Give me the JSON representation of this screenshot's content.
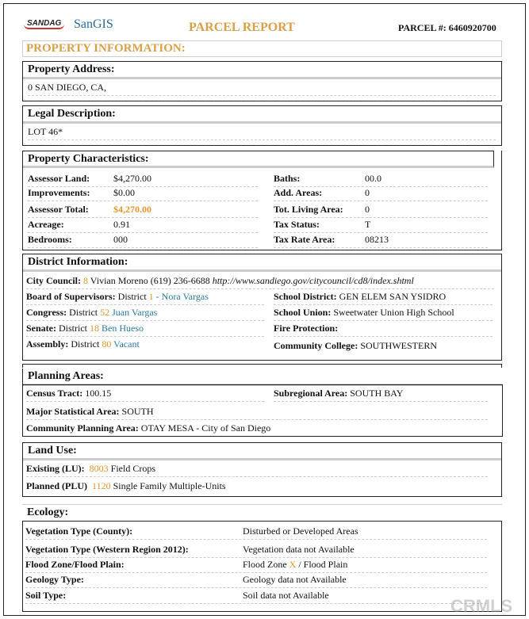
{
  "header": {
    "logo1": "SANDAG",
    "logo2": "SanGIS",
    "title": "PARCEL REPORT",
    "parcel_label": "PARCEL #:",
    "parcel_number": "6460920700"
  },
  "property_info": "PROPERTY INFORMATION:",
  "address": {
    "title": "Property Address:",
    "value": "0   SAN DIEGO, CA,"
  },
  "legal": {
    "title": "Legal Description:",
    "value": "LOT 46*"
  },
  "characteristics": {
    "title": "Property Characteristics:",
    "left": [
      {
        "label": "Assessor Land:",
        "value": "$4,270.00"
      },
      {
        "label": "Improvements:",
        "value": "$0.00"
      },
      {
        "label": "Assessor Total:",
        "value": "$4,270.00"
      },
      {
        "label": "Acreage:",
        "value": "0.91"
      },
      {
        "label": "Bedrooms:",
        "value": "000"
      }
    ],
    "right": [
      {
        "label": "Baths:",
        "value": "00.0"
      },
      {
        "label": "Add. Areas:",
        "value": "0"
      },
      {
        "label": "Tot. Living Area:",
        "value": "0"
      },
      {
        "label": "Tax Status:",
        "value": "T"
      },
      {
        "label": "Tax Rate Area:",
        "value": "08213"
      }
    ]
  },
  "district": {
    "title": "District Information:",
    "council_label": "City Council:",
    "council_num": "8",
    "council_text": "Vivian Moreno  (619) 236-6688",
    "council_url": "http://www.sandiego.gov/citycouncil/cd8/index.shtml",
    "bos_label": "Board of Supervisors:",
    "bos_pre": "District",
    "bos_num": "1",
    "bos_name": "- Nora Vargas",
    "congress_label": "Congress:",
    "congress_pre": "District",
    "congress_num": "52",
    "congress_name": "Juan Vargas",
    "senate_label": "Senate:",
    "senate_pre": "District",
    "senate_num": "18",
    "senate_name": "Ben Hueso",
    "assembly_label": "Assembly:",
    "assembly_pre": "District",
    "assembly_num": "80",
    "assembly_name": "Vacant",
    "school_district_label": "School District:",
    "school_district": "GEN ELEM SAN YSIDRO",
    "school_union_label": "School Union:",
    "school_union": "Sweetwater Union High School",
    "fire_label": "Fire Protection:",
    "college_label": "Community College:",
    "college": "SOUTHWESTERN"
  },
  "planning": {
    "title": "Planning Areas:",
    "census_label": "Census Tract:",
    "census": "100.15",
    "subregional_label": "Subregional Area:",
    "subregional": "SOUTH BAY",
    "msa_label": "Major Statistical Area:",
    "msa": "SOUTH",
    "cpa_label": "Community Planning Area:",
    "cpa": "OTAY MESA - City of San Diego"
  },
  "landuse": {
    "title": "Land Use:",
    "existing_label": "Existing (LU):",
    "existing_code": "8003",
    "existing": "Field Crops",
    "planned_label": "Planned (PLU)",
    "planned_code": "1120",
    "planned": "Single Family Multiple-Units"
  },
  "ecology": {
    "title": "Ecology:",
    "rows": [
      {
        "label": "Vegetation Type (County):",
        "value": "Disturbed or Developed Areas"
      },
      {
        "label": "Vegetation Type (Western Region 2012):",
        "value": "Vegetation data not Available"
      },
      {
        "label": "Flood Zone/Flood Plain:",
        "value": "Flood Zone",
        "x": "X",
        "value2": "/ Flood Plain"
      },
      {
        "label": "Geology Type:",
        "value": "Geology data not Available"
      },
      {
        "label": "Soil Type:",
        "value": "Soil data not Available"
      }
    ]
  },
  "watermark": "CRMLS"
}
